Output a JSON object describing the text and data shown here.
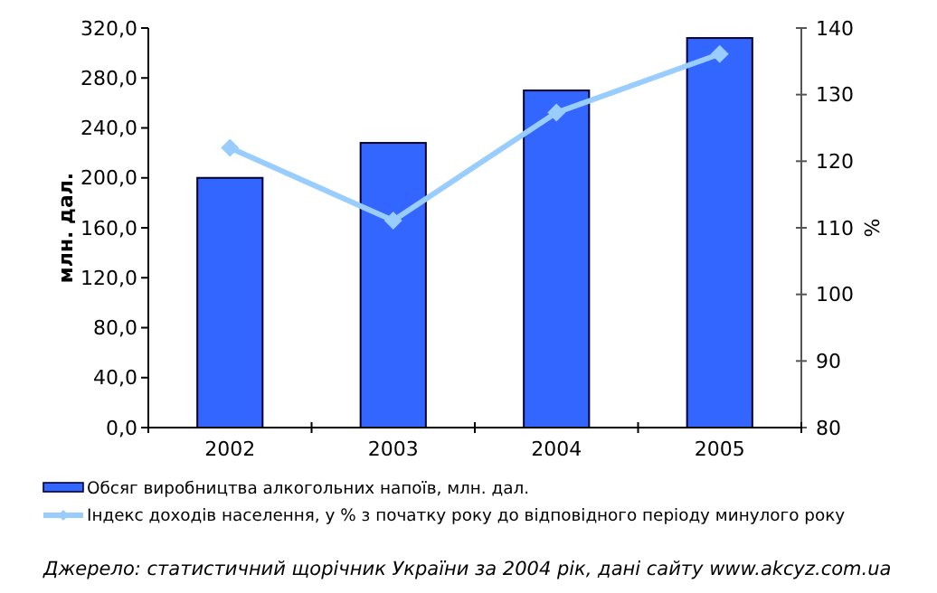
{
  "chart_data": {
    "type": "bar",
    "categories": [
      "2002",
      "2003",
      "2004",
      "2005"
    ],
    "ylabel": "млн. дал.",
    "y2label": "%",
    "series": [
      {
        "name": "Обсяг виробництва алкогольних напоїв, млн. дал.",
        "color": "#3366ff",
        "values": [
          200,
          228,
          270,
          312
        ]
      },
      {
        "name": "Індекс доходів населення, у % з початку року до відповідного періоду минулого року",
        "type": "line",
        "axis": "y2",
        "color": "#99ccff",
        "marker": "diamond",
        "values": [
          122,
          111.1,
          127.3,
          136.1
        ]
      }
    ],
    "ylim": [
      0,
      320
    ],
    "yticks": [
      {
        "value": 0,
        "label": "0,0"
      },
      {
        "value": 40,
        "label": "40,0"
      },
      {
        "value": 80,
        "label": "80,0"
      },
      {
        "value": 120,
        "label": "120,0"
      },
      {
        "value": 160,
        "label": "160,0"
      },
      {
        "value": 200,
        "label": "200,0"
      },
      {
        "value": 240,
        "label": "240,0"
      },
      {
        "value": 280,
        "label": "280,0"
      },
      {
        "value": 320,
        "label": "320,0"
      }
    ],
    "y2lim": [
      80,
      140
    ],
    "y2ticks": [
      80,
      90,
      100,
      110,
      120,
      130,
      140
    ],
    "grid": false,
    "legend": "bottom",
    "annotations": [
      "Джерело: статистичний щорічник України за 2004 рік,  дані сайту www.akcyz.com.ua"
    ]
  }
}
